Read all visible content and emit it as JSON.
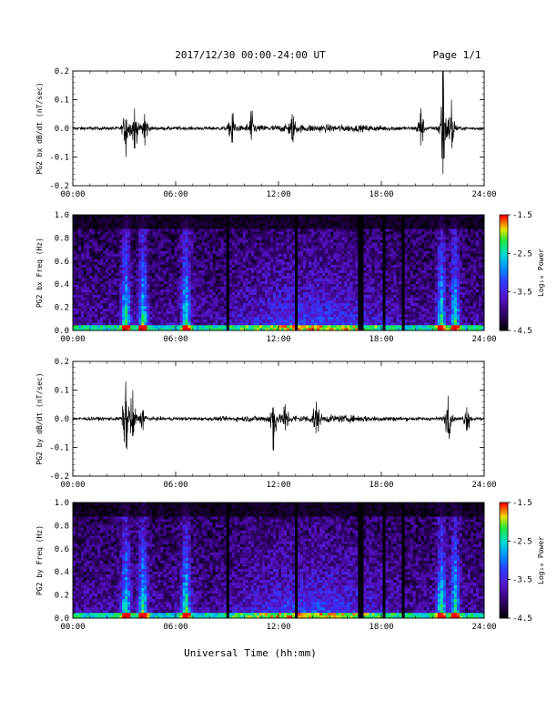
{
  "header": {
    "title": "2017/12/30  00:00-24:00 UT",
    "page": "Page 1/1"
  },
  "footer": {
    "xlabel": "Universal Time (hh:mm)"
  },
  "x_ticks": [
    "00:00",
    "06:00",
    "12:00",
    "18:00",
    "24:00"
  ],
  "colorbar": {
    "label": "Log₁₀ Power",
    "ticks": [
      "-1.5",
      "-2.5",
      "-3.5",
      "-4.5"
    ],
    "range": [
      -4.5,
      -1.5
    ]
  },
  "chart_data": [
    {
      "type": "line",
      "ylabel": "PG2 bx dB/dt (nT/sec)",
      "xlim": [
        0,
        24
      ],
      "ylim": [
        -0.2,
        0.2
      ],
      "y_ticks": [
        "0.2",
        "0.1",
        "0.0",
        "-0.1",
        "-0.2"
      ],
      "events": [
        {
          "t": 3.1,
          "min": -0.1,
          "max": 0.03
        },
        {
          "t": 3.6,
          "min": -0.07,
          "max": 0.07
        },
        {
          "t": 4.2,
          "min": -0.06,
          "max": 0.05
        },
        {
          "t": 9.3,
          "min": -0.05,
          "max": 0.05
        },
        {
          "t": 10.4,
          "min": -0.04,
          "max": 0.06
        },
        {
          "t": 12.8,
          "min": -0.04,
          "max": 0.05
        },
        {
          "t": 20.3,
          "min": -0.06,
          "max": 0.07
        },
        {
          "t": 21.6,
          "min": -0.16,
          "max": 0.2
        },
        {
          "t": 22.1,
          "min": -0.07,
          "max": 0.1
        }
      ]
    },
    {
      "type": "heatmap",
      "ylabel": "PG2 bx Freq (Hz)",
      "xlim": [
        0,
        24
      ],
      "ylim": [
        0.0,
        1.0
      ],
      "y_ticks": [
        "1.0",
        "0.8",
        "0.6",
        "0.4",
        "0.2",
        "0.0"
      ],
      "z_range": [
        -4.5,
        -1.5
      ],
      "bursts": [
        3.1,
        4.1,
        6.6,
        21.5,
        22.3
      ],
      "gaps": [
        9.0,
        13.1,
        16.8,
        18.1,
        19.3
      ]
    },
    {
      "type": "line",
      "ylabel": "PG2 by dB/dt (nT/sec)",
      "xlim": [
        0,
        24
      ],
      "ylim": [
        -0.2,
        0.2
      ],
      "y_ticks": [
        "0.2",
        "0.1",
        "0.0",
        "-0.1",
        "-0.2"
      ],
      "events": [
        {
          "t": 3.1,
          "min": -0.1,
          "max": 0.13
        },
        {
          "t": 3.5,
          "min": -0.06,
          "max": 0.1
        },
        {
          "t": 4.1,
          "min": -0.04,
          "max": 0.03
        },
        {
          "t": 11.7,
          "min": -0.11,
          "max": 0.04
        },
        {
          "t": 12.4,
          "min": -0.04,
          "max": 0.05
        },
        {
          "t": 14.2,
          "min": -0.05,
          "max": 0.06
        },
        {
          "t": 21.9,
          "min": -0.05,
          "max": 0.08
        },
        {
          "t": 23.0,
          "min": -0.04,
          "max": 0.04
        }
      ]
    },
    {
      "type": "heatmap",
      "ylabel": "PG2 by Freq (Hz)",
      "xlim": [
        0,
        24
      ],
      "ylim": [
        0.0,
        1.0
      ],
      "y_ticks": [
        "1.0",
        "0.8",
        "0.6",
        "0.4",
        "0.2",
        "0.0"
      ],
      "z_range": [
        -4.5,
        -1.5
      ],
      "bursts": [
        3.1,
        4.1,
        6.6,
        21.5,
        22.3
      ],
      "gaps": [
        9.0,
        13.1,
        16.8,
        18.1,
        19.3
      ]
    }
  ]
}
